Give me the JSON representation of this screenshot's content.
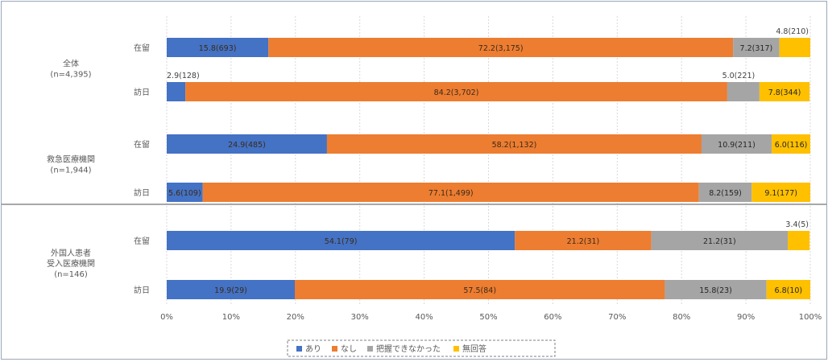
{
  "chart_data": {
    "type": "bar",
    "orientation": "horizontal",
    "stacked": true,
    "xlim": [
      0,
      100
    ],
    "x_ticks": [
      "0%",
      "10%",
      "20%",
      "30%",
      "40%",
      "50%",
      "60%",
      "70%",
      "80%",
      "90%",
      "100%"
    ],
    "grid": true,
    "legend_position": "bottom",
    "series": [
      {
        "name": "あり",
        "color": "#4472c4"
      },
      {
        "name": "なし",
        "color": "#ed7d31"
      },
      {
        "name": "把握できなかった",
        "color": "#a5a5a5"
      },
      {
        "name": "無回答",
        "color": "#ffc000"
      }
    ],
    "groups": [
      {
        "label": "全体\n(n=4,395)",
        "rows": [
          {
            "label": "在留",
            "values": [
              15.8,
              72.2,
              7.2,
              4.8
            ],
            "labels": [
              "15.8(693)",
              "72.2(3,175)",
              "7.2(317)",
              "4.8(210)"
            ]
          },
          {
            "label": "訪日",
            "values": [
              2.9,
              84.2,
              5.0,
              7.8
            ],
            "labels": [
              "2.9(128)",
              "84.2(3,702)",
              "5.0(221)",
              "7.8(344)"
            ]
          }
        ]
      },
      {
        "label": "救急医療機関\n(n=1,944)",
        "rows": [
          {
            "label": "在留",
            "values": [
              24.9,
              58.2,
              10.9,
              6.0
            ],
            "labels": [
              "24.9(485)",
              "58.2(1,132)",
              "10.9(211)",
              "6.0(116)"
            ]
          },
          {
            "label": "訪日",
            "values": [
              5.6,
              77.1,
              8.2,
              9.1
            ],
            "labels": [
              "5.6(109)",
              "77.1(1,499)",
              "8.2(159)",
              "9.1(177)"
            ]
          }
        ]
      },
      {
        "label": "外国人患者\n受入医療機関\n(n=146)",
        "rows": [
          {
            "label": "在留",
            "values": [
              54.1,
              21.2,
              21.2,
              3.4
            ],
            "labels": [
              "54.1(79)",
              "21.2(31)",
              "21.2(31)",
              "3.4(5)"
            ]
          },
          {
            "label": "訪日",
            "values": [
              19.9,
              57.5,
              15.8,
              6.8
            ],
            "labels": [
              "19.9(29)",
              "57.5(84)",
              "15.8(23)",
              "6.8(10)"
            ]
          }
        ]
      }
    ]
  }
}
